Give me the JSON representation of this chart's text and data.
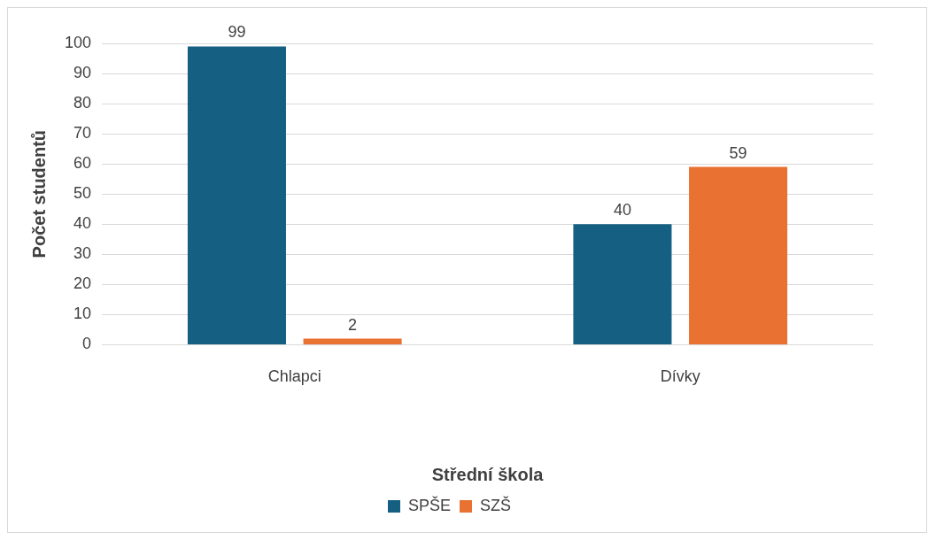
{
  "chart_data": {
    "type": "bar",
    "xlabel": "Střední škola",
    "ylabel": "Počet studentů",
    "categories": [
      "Chlapci",
      "Dívky"
    ],
    "series": [
      {
        "name": "SPŠE",
        "color": "#156082",
        "values": [
          99,
          40
        ]
      },
      {
        "name": "SZŠ",
        "color": "#e97132",
        "values": [
          2,
          59
        ]
      }
    ],
    "ylim": [
      0,
      100
    ],
    "yticks": [
      0,
      10,
      20,
      30,
      40,
      50,
      60,
      70,
      80,
      90,
      100
    ],
    "grid": "y",
    "legend": "bottom",
    "data_labels": true
  }
}
